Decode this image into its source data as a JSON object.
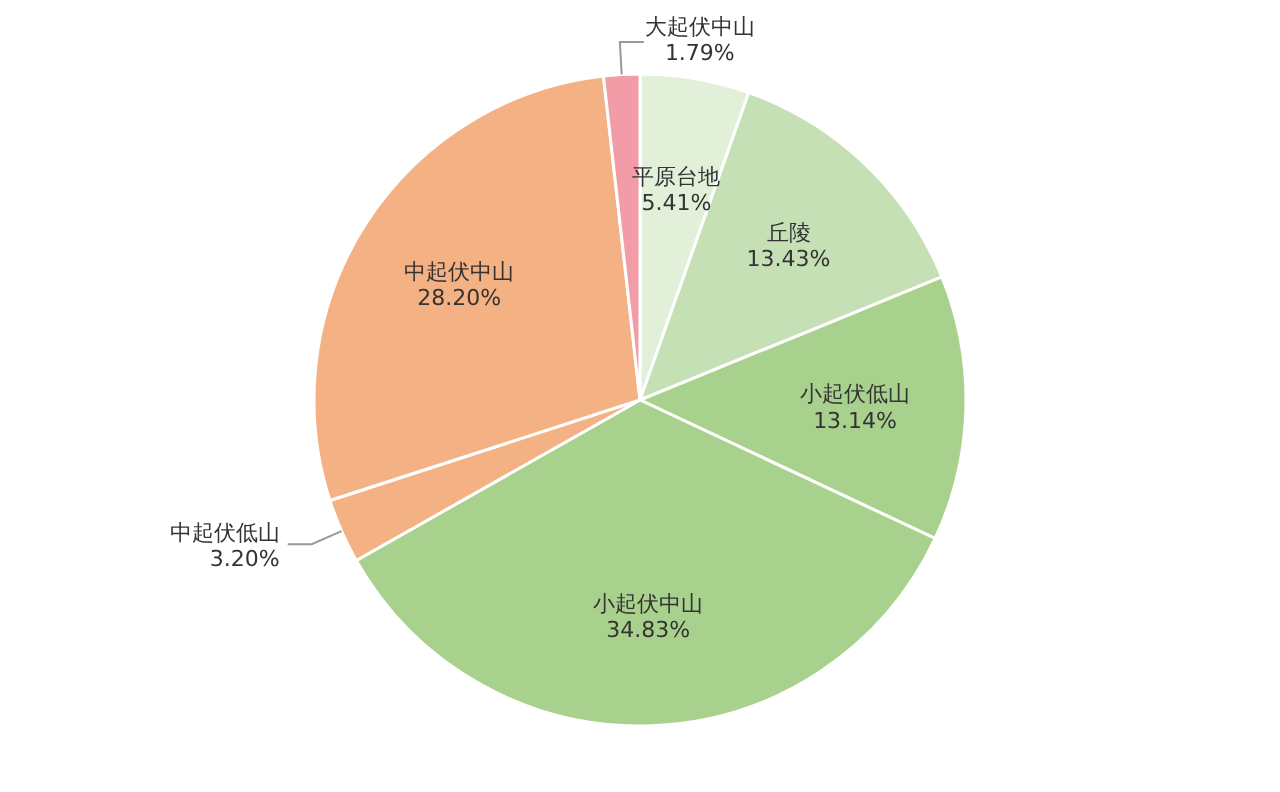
{
  "chart_data": {
    "type": "pie",
    "categories": [
      "平原台地",
      "丘陵",
      "小起伏低山",
      "小起伏中山",
      "中起伏低山",
      "中起伏中山",
      "大起伏中山"
    ],
    "values": [
      5.41,
      13.43,
      13.14,
      34.83,
      3.2,
      28.2,
      1.79
    ],
    "colors": [
      "#e2f0d9",
      "#c5e0b4",
      "#a9d18e",
      "#a9d18e",
      "#f4b183",
      "#f4b183",
      "#f19ca6"
    ],
    "value_labels": [
      "5.41%",
      "13.43%",
      "13.14%",
      "34.83%",
      "3.20%",
      "28.20%",
      "1.79%"
    ]
  }
}
